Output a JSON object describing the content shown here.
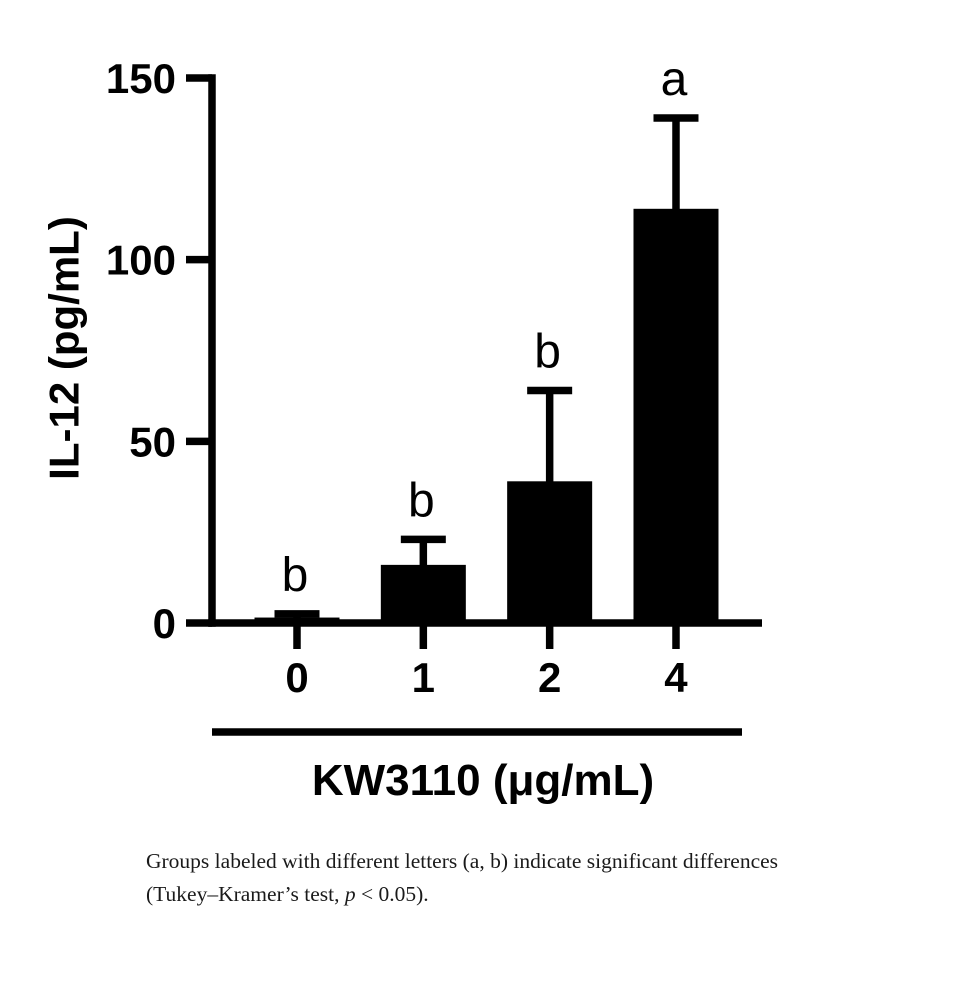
{
  "figure": {
    "background": "#ffffff",
    "ink": "#000000"
  },
  "chart_data": {
    "type": "bar",
    "title": "",
    "categories": [
      "0",
      "1",
      "2",
      "4"
    ],
    "values": [
      1.5,
      16,
      39,
      114
    ],
    "error_plus": [
      1,
      7,
      25,
      25
    ],
    "sig_letters": [
      "b",
      "b",
      "b",
      "a"
    ],
    "xlabel": "KW3110 (μg/mL)",
    "ylabel": "IL-12 (pg/mL)",
    "ylim": [
      0,
      150
    ],
    "yticks": [
      0,
      50,
      100,
      150
    ],
    "bar_color": "#000000",
    "grid": false,
    "legend": false
  },
  "caption": {
    "line1": "Groups labeled with different letters (a, b) indicate significant differences",
    "line2_prefix": "(Tukey–Kramer’s test, ",
    "line2_italic": "p",
    "line2_suffix": " < 0.05)."
  }
}
